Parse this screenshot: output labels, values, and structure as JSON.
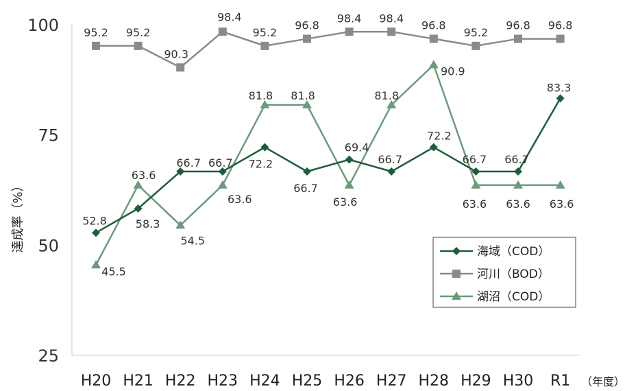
{
  "chart_data": {
    "type": "line",
    "ylabel": "達成率（%）",
    "x_unit": "（年度）",
    "categories": [
      "H20",
      "H21",
      "H22",
      "H23",
      "H24",
      "H25",
      "H26",
      "H27",
      "H28",
      "H29",
      "H30",
      "R1"
    ],
    "yticks": [
      25,
      50,
      75,
      100
    ],
    "ylim": [
      25,
      100
    ],
    "grid": false,
    "legend": "inside-right",
    "series": [
      {
        "name": "海域（COD）",
        "marker": "diamond",
        "color": "#1f5c3a",
        "values": [
          52.8,
          58.3,
          66.7,
          66.7,
          72.2,
          66.7,
          69.4,
          66.7,
          72.2,
          66.7,
          66.7,
          83.3
        ],
        "labels": [
          "52.8",
          "58.3",
          "66.7",
          "66.7",
          "72.2",
          "66.7",
          "69.4",
          "66.7",
          "72.2",
          "66.7",
          "66.7",
          "83.3"
        ]
      },
      {
        "name": "河川（BOD）",
        "marker": "square",
        "color": "#8a8a8a",
        "values": [
          95.2,
          95.2,
          90.3,
          98.4,
          95.2,
          96.8,
          98.4,
          98.4,
          96.8,
          95.2,
          96.8,
          96.8
        ],
        "labels": [
          "95.2",
          "95.2",
          "90.3",
          "98.4",
          "95.2",
          "96.8",
          "98.4",
          "98.4",
          "96.8",
          "95.2",
          "96.8",
          "96.8"
        ]
      },
      {
        "name": "湖沼（COD）",
        "marker": "triangle",
        "color": "#6b9a7c",
        "values": [
          45.5,
          63.6,
          54.5,
          63.6,
          81.8,
          81.8,
          63.6,
          81.8,
          90.9,
          63.6,
          63.6,
          63.6
        ],
        "labels": [
          "45.5",
          "63.6",
          "54.5",
          "63.6",
          "81.8",
          "81.8",
          "63.6",
          "81.8",
          "90.9",
          "63.6",
          "63.6",
          "63.6"
        ]
      }
    ]
  }
}
